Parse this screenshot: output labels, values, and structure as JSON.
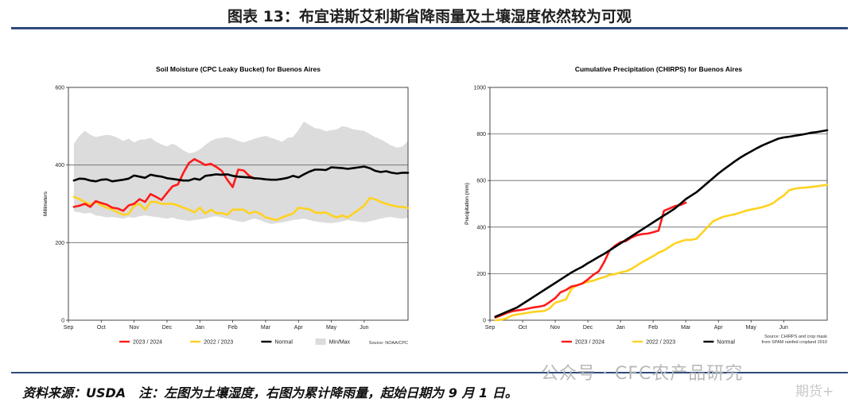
{
  "header": {
    "title": "图表 13：布宜诺斯艾利斯省降雨量及土壤湿度依然较为可观"
  },
  "footer": {
    "note": "资料来源：USDA　注：左图为土壤湿度，右图为累计降雨量，起始日期为 9 月 1 日。"
  },
  "watermark": {
    "text": "公众号 · CFC农产品研究",
    "text2": "期货+"
  },
  "colors": {
    "red": "#ff1a1a",
    "yellow": "#ffd21f",
    "black": "#000000",
    "band": "#dcdcdc",
    "rule": "#2f4a7a"
  },
  "chart_data": [
    {
      "type": "line",
      "title": "Soil Moisture (CPC Leaky Bucket) for Buenos Aires",
      "ylabel": "Millimeters",
      "xlabel": "",
      "ylim": [
        0,
        600
      ],
      "yticks": [
        0,
        200,
        400,
        600
      ],
      "xlim": [
        0,
        62
      ],
      "xticks": [
        {
          "x": 0,
          "label": "Sep"
        },
        {
          "x": 6,
          "label": "Oct"
        },
        {
          "x": 12,
          "label": "Nov"
        },
        {
          "x": 18,
          "label": "Dec"
        },
        {
          "x": 24,
          "label": "Jan"
        },
        {
          "x": 30,
          "label": "Feb"
        },
        {
          "x": 36,
          "label": "Mar"
        },
        {
          "x": 42,
          "label": "Apr"
        },
        {
          "x": 48,
          "label": "May"
        },
        {
          "x": 54,
          "label": "Jun"
        }
      ],
      "source": "Source: NOAA/CPC",
      "band": {
        "name": "Min/Max",
        "x": [
          1,
          2,
          3,
          4,
          5,
          6,
          7,
          8,
          9,
          10,
          11,
          12,
          13,
          14,
          15,
          16,
          17,
          18,
          19,
          20,
          21,
          22,
          23,
          24,
          25,
          26,
          27,
          28,
          29,
          30,
          31,
          32,
          33,
          34,
          35,
          36,
          37,
          38,
          39,
          40,
          41,
          42,
          43,
          44,
          45,
          46,
          47,
          48,
          49,
          50,
          51,
          52,
          53,
          54,
          55,
          56,
          57,
          58,
          59,
          60,
          61,
          62
        ],
        "max": [
          455,
          475,
          488,
          478,
          472,
          475,
          478,
          476,
          470,
          462,
          468,
          458,
          465,
          466,
          470,
          460,
          453,
          448,
          455,
          448,
          438,
          430,
          433,
          440,
          452,
          462,
          468,
          470,
          472,
          468,
          462,
          458,
          463,
          468,
          472,
          475,
          470,
          465,
          460,
          470,
          472,
          490,
          512,
          503,
          495,
          493,
          487,
          490,
          492,
          500,
          497,
          492,
          490,
          488,
          480,
          472,
          466,
          458,
          450,
          445,
          448,
          462
        ],
        "min": [
          280,
          278,
          275,
          277,
          270,
          268,
          265,
          266,
          264,
          262,
          266,
          264,
          268,
          270,
          268,
          266,
          264,
          262,
          265,
          260,
          258,
          256,
          258,
          260,
          262,
          266,
          268,
          265,
          262,
          258,
          255,
          253,
          258,
          262,
          258,
          252,
          248,
          250,
          252,
          255,
          258,
          260,
          262,
          258,
          255,
          253,
          251,
          250,
          252,
          255,
          258,
          256,
          254,
          252,
          255,
          258,
          262,
          265,
          266,
          263,
          262,
          264
        ]
      },
      "series": [
        {
          "name": "2023 / 2024",
          "color": "#ff1a1a",
          "x": [
            1,
            2,
            3,
            4,
            5,
            6,
            7,
            8,
            9,
            10,
            11,
            12,
            13,
            14,
            15,
            16,
            17,
            18,
            19,
            20,
            21,
            22,
            23,
            24,
            25,
            26,
            27,
            28,
            29,
            30,
            31,
            32,
            33,
            34
          ],
          "y": [
            292,
            295,
            300,
            292,
            307,
            302,
            298,
            290,
            288,
            282,
            296,
            300,
            312,
            305,
            325,
            318,
            310,
            328,
            345,
            350,
            380,
            405,
            415,
            408,
            400,
            403,
            395,
            385,
            362,
            343,
            388,
            386,
            372,
            365
          ]
        },
        {
          "name": "2022 / 2023",
          "color": "#ffd21f",
          "x": [
            1,
            2,
            3,
            4,
            5,
            6,
            7,
            8,
            9,
            10,
            11,
            12,
            13,
            14,
            15,
            16,
            17,
            18,
            19,
            20,
            21,
            22,
            23,
            24,
            25,
            26,
            27,
            28,
            29,
            30,
            31,
            32,
            33,
            34,
            35,
            36,
            37,
            38,
            39,
            40,
            41,
            42,
            43,
            44,
            45,
            46,
            47,
            48,
            49,
            50,
            51,
            52,
            53,
            54,
            55,
            56,
            57,
            58,
            59,
            60,
            61,
            62
          ],
          "y": [
            318,
            312,
            305,
            298,
            305,
            296,
            290,
            285,
            278,
            272,
            274,
            295,
            300,
            285,
            305,
            305,
            300,
            300,
            300,
            296,
            290,
            285,
            278,
            290,
            275,
            285,
            276,
            276,
            272,
            285,
            285,
            285,
            275,
            280,
            275,
            265,
            262,
            258,
            265,
            270,
            275,
            290,
            288,
            286,
            278,
            276,
            278,
            270,
            265,
            270,
            265,
            275,
            285,
            295,
            315,
            312,
            305,
            300,
            296,
            293,
            292,
            289
          ]
        },
        {
          "name": "Normal",
          "color": "#000000",
          "x": [
            1,
            2,
            3,
            4,
            5,
            6,
            7,
            8,
            9,
            10,
            11,
            12,
            13,
            14,
            15,
            16,
            17,
            18,
            19,
            20,
            21,
            22,
            23,
            24,
            25,
            26,
            27,
            28,
            29,
            30,
            31,
            32,
            33,
            34,
            35,
            36,
            37,
            38,
            39,
            40,
            41,
            42,
            43,
            44,
            45,
            46,
            47,
            48,
            49,
            50,
            51,
            52,
            53,
            54,
            55,
            56,
            57,
            58,
            59,
            60,
            61,
            62
          ],
          "y": [
            360,
            365,
            364,
            360,
            358,
            362,
            363,
            358,
            360,
            362,
            365,
            373,
            370,
            367,
            375,
            372,
            370,
            366,
            364,
            362,
            360,
            360,
            365,
            362,
            372,
            374,
            376,
            375,
            376,
            372,
            370,
            369,
            368,
            366,
            365,
            363,
            362,
            362,
            364,
            367,
            372,
            368,
            376,
            383,
            388,
            388,
            387,
            394,
            393,
            392,
            390,
            392,
            394,
            396,
            392,
            385,
            382,
            384,
            380,
            378,
            380,
            380
          ]
        }
      ],
      "legend": [
        {
          "name": "2023 / 2024",
          "kind": "line",
          "color": "#ff1a1a"
        },
        {
          "name": "2022 / 2023",
          "kind": "line",
          "color": "#ffd21f"
        },
        {
          "name": "Normal",
          "kind": "line",
          "color": "#000000"
        },
        {
          "name": "Min/Max",
          "kind": "box",
          "color": "#dcdcdc"
        }
      ]
    },
    {
      "type": "line",
      "title": "Cumulative Precipitation (CHIRPS) for Buenos Aires",
      "ylabel": "Precipitation (mm)",
      "xlabel": "",
      "ylim": [
        0,
        1000
      ],
      "yticks": [
        0,
        200,
        400,
        600,
        800,
        1000
      ],
      "xlim": [
        0,
        62
      ],
      "xticks": [
        {
          "x": 0,
          "label": "Sep"
        },
        {
          "x": 6,
          "label": "Oct"
        },
        {
          "x": 12,
          "label": "Nov"
        },
        {
          "x": 18,
          "label": "Dec"
        },
        {
          "x": 24,
          "label": "Jan"
        },
        {
          "x": 30,
          "label": "Feb"
        },
        {
          "x": 36,
          "label": "Mar"
        },
        {
          "x": 42,
          "label": "Apr"
        },
        {
          "x": 48,
          "label": "May"
        },
        {
          "x": 54,
          "label": "Jun"
        }
      ],
      "source": "Source: CHIRPS and crop mask\nfrom SPAM rainfed cropland 2010",
      "series": [
        {
          "name": "2023 / 2024",
          "color": "#ff1a1a",
          "x": [
            1,
            2,
            3,
            4,
            5,
            6,
            7,
            8,
            9,
            10,
            11,
            12,
            13,
            14,
            15,
            16,
            17,
            18,
            19,
            20,
            21,
            22,
            23,
            24,
            25,
            26,
            27,
            28,
            29,
            30,
            31,
            32,
            33,
            34,
            35,
            36
          ],
          "y": [
            12,
            20,
            30,
            38,
            42,
            45,
            50,
            55,
            58,
            63,
            78,
            95,
            120,
            130,
            145,
            150,
            158,
            175,
            195,
            210,
            250,
            300,
            320,
            335,
            340,
            355,
            365,
            370,
            372,
            378,
            385,
            470,
            480,
            490,
            495,
            505
          ]
        },
        {
          "name": "2022 / 2023",
          "color": "#ffd21f",
          "x": [
            1,
            2,
            3,
            4,
            5,
            6,
            7,
            8,
            9,
            10,
            11,
            12,
            13,
            14,
            15,
            16,
            17,
            18,
            19,
            20,
            21,
            22,
            23,
            24,
            25,
            26,
            27,
            28,
            29,
            30,
            31,
            32,
            33,
            34,
            35,
            36,
            37,
            38,
            39,
            40,
            41,
            42,
            43,
            44,
            45,
            46,
            47,
            48,
            49,
            50,
            51,
            52,
            53,
            54,
            55,
            56,
            57,
            58,
            59,
            60,
            61,
            62
          ],
          "y": [
            0,
            2,
            8,
            20,
            25,
            28,
            32,
            36,
            38,
            40,
            52,
            75,
            82,
            90,
            135,
            150,
            158,
            165,
            170,
            178,
            185,
            195,
            198,
            205,
            210,
            220,
            235,
            250,
            262,
            275,
            290,
            300,
            315,
            330,
            338,
            345,
            345,
            350,
            375,
            400,
            425,
            435,
            445,
            450,
            455,
            462,
            470,
            475,
            480,
            485,
            492,
            502,
            520,
            535,
            558,
            565,
            568,
            570,
            572,
            575,
            578,
            582
          ]
        },
        {
          "name": "Normal",
          "color": "#000000",
          "x": [
            1,
            2,
            3,
            4,
            5,
            6,
            7,
            8,
            9,
            10,
            11,
            12,
            13,
            14,
            15,
            16,
            17,
            18,
            19,
            20,
            21,
            22,
            23,
            24,
            25,
            26,
            27,
            28,
            29,
            30,
            31,
            32,
            33,
            34,
            35,
            36,
            37,
            38,
            39,
            40,
            41,
            42,
            43,
            44,
            45,
            46,
            47,
            48,
            49,
            50,
            51,
            52,
            53,
            54,
            55,
            56,
            57,
            58,
            59,
            60,
            61,
            62
          ],
          "y": [
            15,
            25,
            35,
            45,
            55,
            70,
            85,
            100,
            115,
            130,
            145,
            160,
            175,
            190,
            205,
            218,
            230,
            245,
            258,
            272,
            285,
            300,
            315,
            330,
            345,
            360,
            375,
            390,
            405,
            420,
            435,
            450,
            465,
            480,
            500,
            520,
            535,
            550,
            570,
            590,
            610,
            630,
            648,
            665,
            682,
            698,
            712,
            725,
            738,
            750,
            760,
            770,
            780,
            785,
            788,
            792,
            796,
            800,
            805,
            808,
            812,
            816
          ]
        }
      ],
      "legend": [
        {
          "name": "2023 / 2024",
          "kind": "line",
          "color": "#ff1a1a"
        },
        {
          "name": "2022 / 2023",
          "kind": "line",
          "color": "#ffd21f"
        },
        {
          "name": "Normal",
          "kind": "line",
          "color": "#000000"
        }
      ]
    }
  ]
}
